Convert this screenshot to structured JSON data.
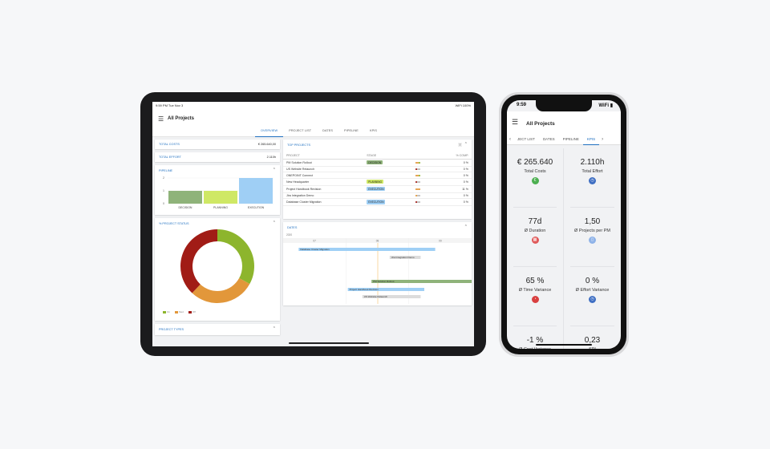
{
  "tablet": {
    "status_time": "9:59 PM  Tue Nov 3",
    "status_right": "WiFi 100%",
    "title": "All Projects",
    "tabs": [
      {
        "label": "Overview",
        "active": true
      },
      {
        "label": "Project List",
        "active": false
      },
      {
        "label": "Dates",
        "active": false
      },
      {
        "label": "Pipeline",
        "active": false
      },
      {
        "label": "KPIs",
        "active": false
      }
    ],
    "total_costs": {
      "label": "Total Costs",
      "value": "€ 265.640,00"
    },
    "total_effort": {
      "label": "Total Effort",
      "value": "2.110h"
    },
    "pipeline": {
      "title": "Pipeline",
      "chart_data": {
        "type": "bar",
        "categories": [
          "DECISION",
          "PLANNING",
          "EXECUTION"
        ],
        "values": [
          1,
          1,
          2
        ],
        "colors": [
          "#8fb37a",
          "#cfe865",
          "#9fcff5"
        ],
        "ylim": [
          0,
          2
        ],
        "yticks": [
          "0",
          "1",
          "2"
        ]
      }
    },
    "project_status": {
      "title": "% Project Status",
      "chart_data": {
        "type": "pie",
        "slices": [
          {
            "value": 0.33,
            "color": "#8db52d"
          },
          {
            "value": 0.29,
            "color": "#e2973a"
          },
          {
            "value": 0.38,
            "color": "#a11c16"
          }
        ],
        "legend": [
          {
            "label": "On",
            "color": "#8db52d"
          },
          {
            "label": "Med",
            "color": "#e2973a"
          },
          {
            "label": "Off",
            "color": "#a11c16"
          }
        ]
      }
    },
    "project_types": {
      "title": "Project Types"
    },
    "top_projects": {
      "title": "Top Projects",
      "count": "7",
      "columns": [
        "Project",
        "Stage",
        "",
        "% Comp."
      ],
      "rows": [
        {
          "project": "PM Solution Rollout",
          "stage": "DECISION",
          "stage_color": "#8fb37a",
          "dots": [
            "#e2973a",
            "#e2973a",
            "#8db52d"
          ],
          "pct": "0 %"
        },
        {
          "project": "US Website Relaunch",
          "stage": "",
          "stage_color": "",
          "dots": [
            "#a11c16",
            "#bbb",
            "#bbb"
          ],
          "pct": "0 %"
        },
        {
          "project": "ONEPOINT Connect",
          "stage": "",
          "stage_color": "",
          "dots": [
            "#e2973a",
            "#e2973a",
            "#8db52d"
          ],
          "pct": "0 %"
        },
        {
          "project": "New Headquarter",
          "stage": "PLANNING",
          "stage_color": "#cfe865",
          "dots": [
            "#a11c16",
            "#bbb",
            "#bbb"
          ],
          "pct": "0 %"
        },
        {
          "project": "Project Handbook Revision",
          "stage": "EXECUTION",
          "stage_color": "#9fcff5",
          "dots": [
            "#e2973a",
            "#e2973a",
            "#e2973a"
          ],
          "pct": "11 %"
        },
        {
          "project": "Jira Integration Demo",
          "stage": "",
          "stage_color": "",
          "dots": [
            "#e2973a",
            "#bbb",
            "#bbb"
          ],
          "pct": "0 %"
        },
        {
          "project": "Database Cluster Migration",
          "stage": "EXECUTION",
          "stage_color": "#9fcff5",
          "dots": [
            "#a11c16",
            "#bbb",
            "#bbb"
          ],
          "pct": "0 %"
        }
      ]
    },
    "dates": {
      "title": "Dates",
      "year": "2020",
      "columns": [
        "07",
        "08",
        "09"
      ],
      "bars": [
        {
          "label": "Database Cluster Migration",
          "color": "#9fcff5",
          "start": 0.05,
          "end": 0.8
        },
        {
          "label": "Jira Integration Demo",
          "color": "#dcdcdc",
          "start": 0.55,
          "end": 0.72
        },
        {
          "label": "PM Solution Rollout",
          "color": "#8fb37a",
          "start": 0.45,
          "end": 1.0
        },
        {
          "label": "Project Handbook Revision",
          "color": "#9fcff5",
          "start": 0.32,
          "end": 0.74
        },
        {
          "label": "US Website Relaunch",
          "color": "#dcdcdc",
          "start": 0.4,
          "end": 0.72
        }
      ]
    }
  },
  "phone": {
    "status_time": "9:59",
    "status_right": "WiFi ▮",
    "title": "All Projects",
    "tabs": [
      {
        "label": "ject List",
        "active": false
      },
      {
        "label": "Dates",
        "active": false
      },
      {
        "label": "Pipeline",
        "active": false
      },
      {
        "label": "KPIs",
        "active": true
      }
    ],
    "kpis": [
      {
        "value": "€ 265.640",
        "label": "Total Costs",
        "icon": "euro-icon",
        "icon_color": "#4caf50",
        "glyph": "€"
      },
      {
        "value": "2.110h",
        "label": "Total Effort",
        "icon": "clock-icon",
        "icon_color": "#3f6fc3",
        "glyph": "◷"
      },
      {
        "value": "77d",
        "label": "Ø Duration",
        "icon": "calendar-icon",
        "icon_color": "#e05a5a",
        "glyph": "▦"
      },
      {
        "value": "1,50",
        "label": "Ø Projects per PM",
        "icon": "document-icon",
        "icon_color": "#8fb3e8",
        "glyph": "▯"
      },
      {
        "value": "65 %",
        "label": "Ø Time Variance",
        "icon": "stopwatch-icon",
        "icon_color": "#d94040",
        "glyph": "◔"
      },
      {
        "value": "0 %",
        "label": "Ø Effort Variance",
        "icon": "clock-icon",
        "icon_color": "#3f6fc3",
        "glyph": "◷"
      },
      {
        "value": "-1 %",
        "label": "Ø Cost Variance",
        "icon": "",
        "icon_color": "",
        "glyph": ""
      },
      {
        "value": "0,23",
        "label": "SPI",
        "icon": "",
        "icon_color": "",
        "glyph": ""
      }
    ]
  }
}
